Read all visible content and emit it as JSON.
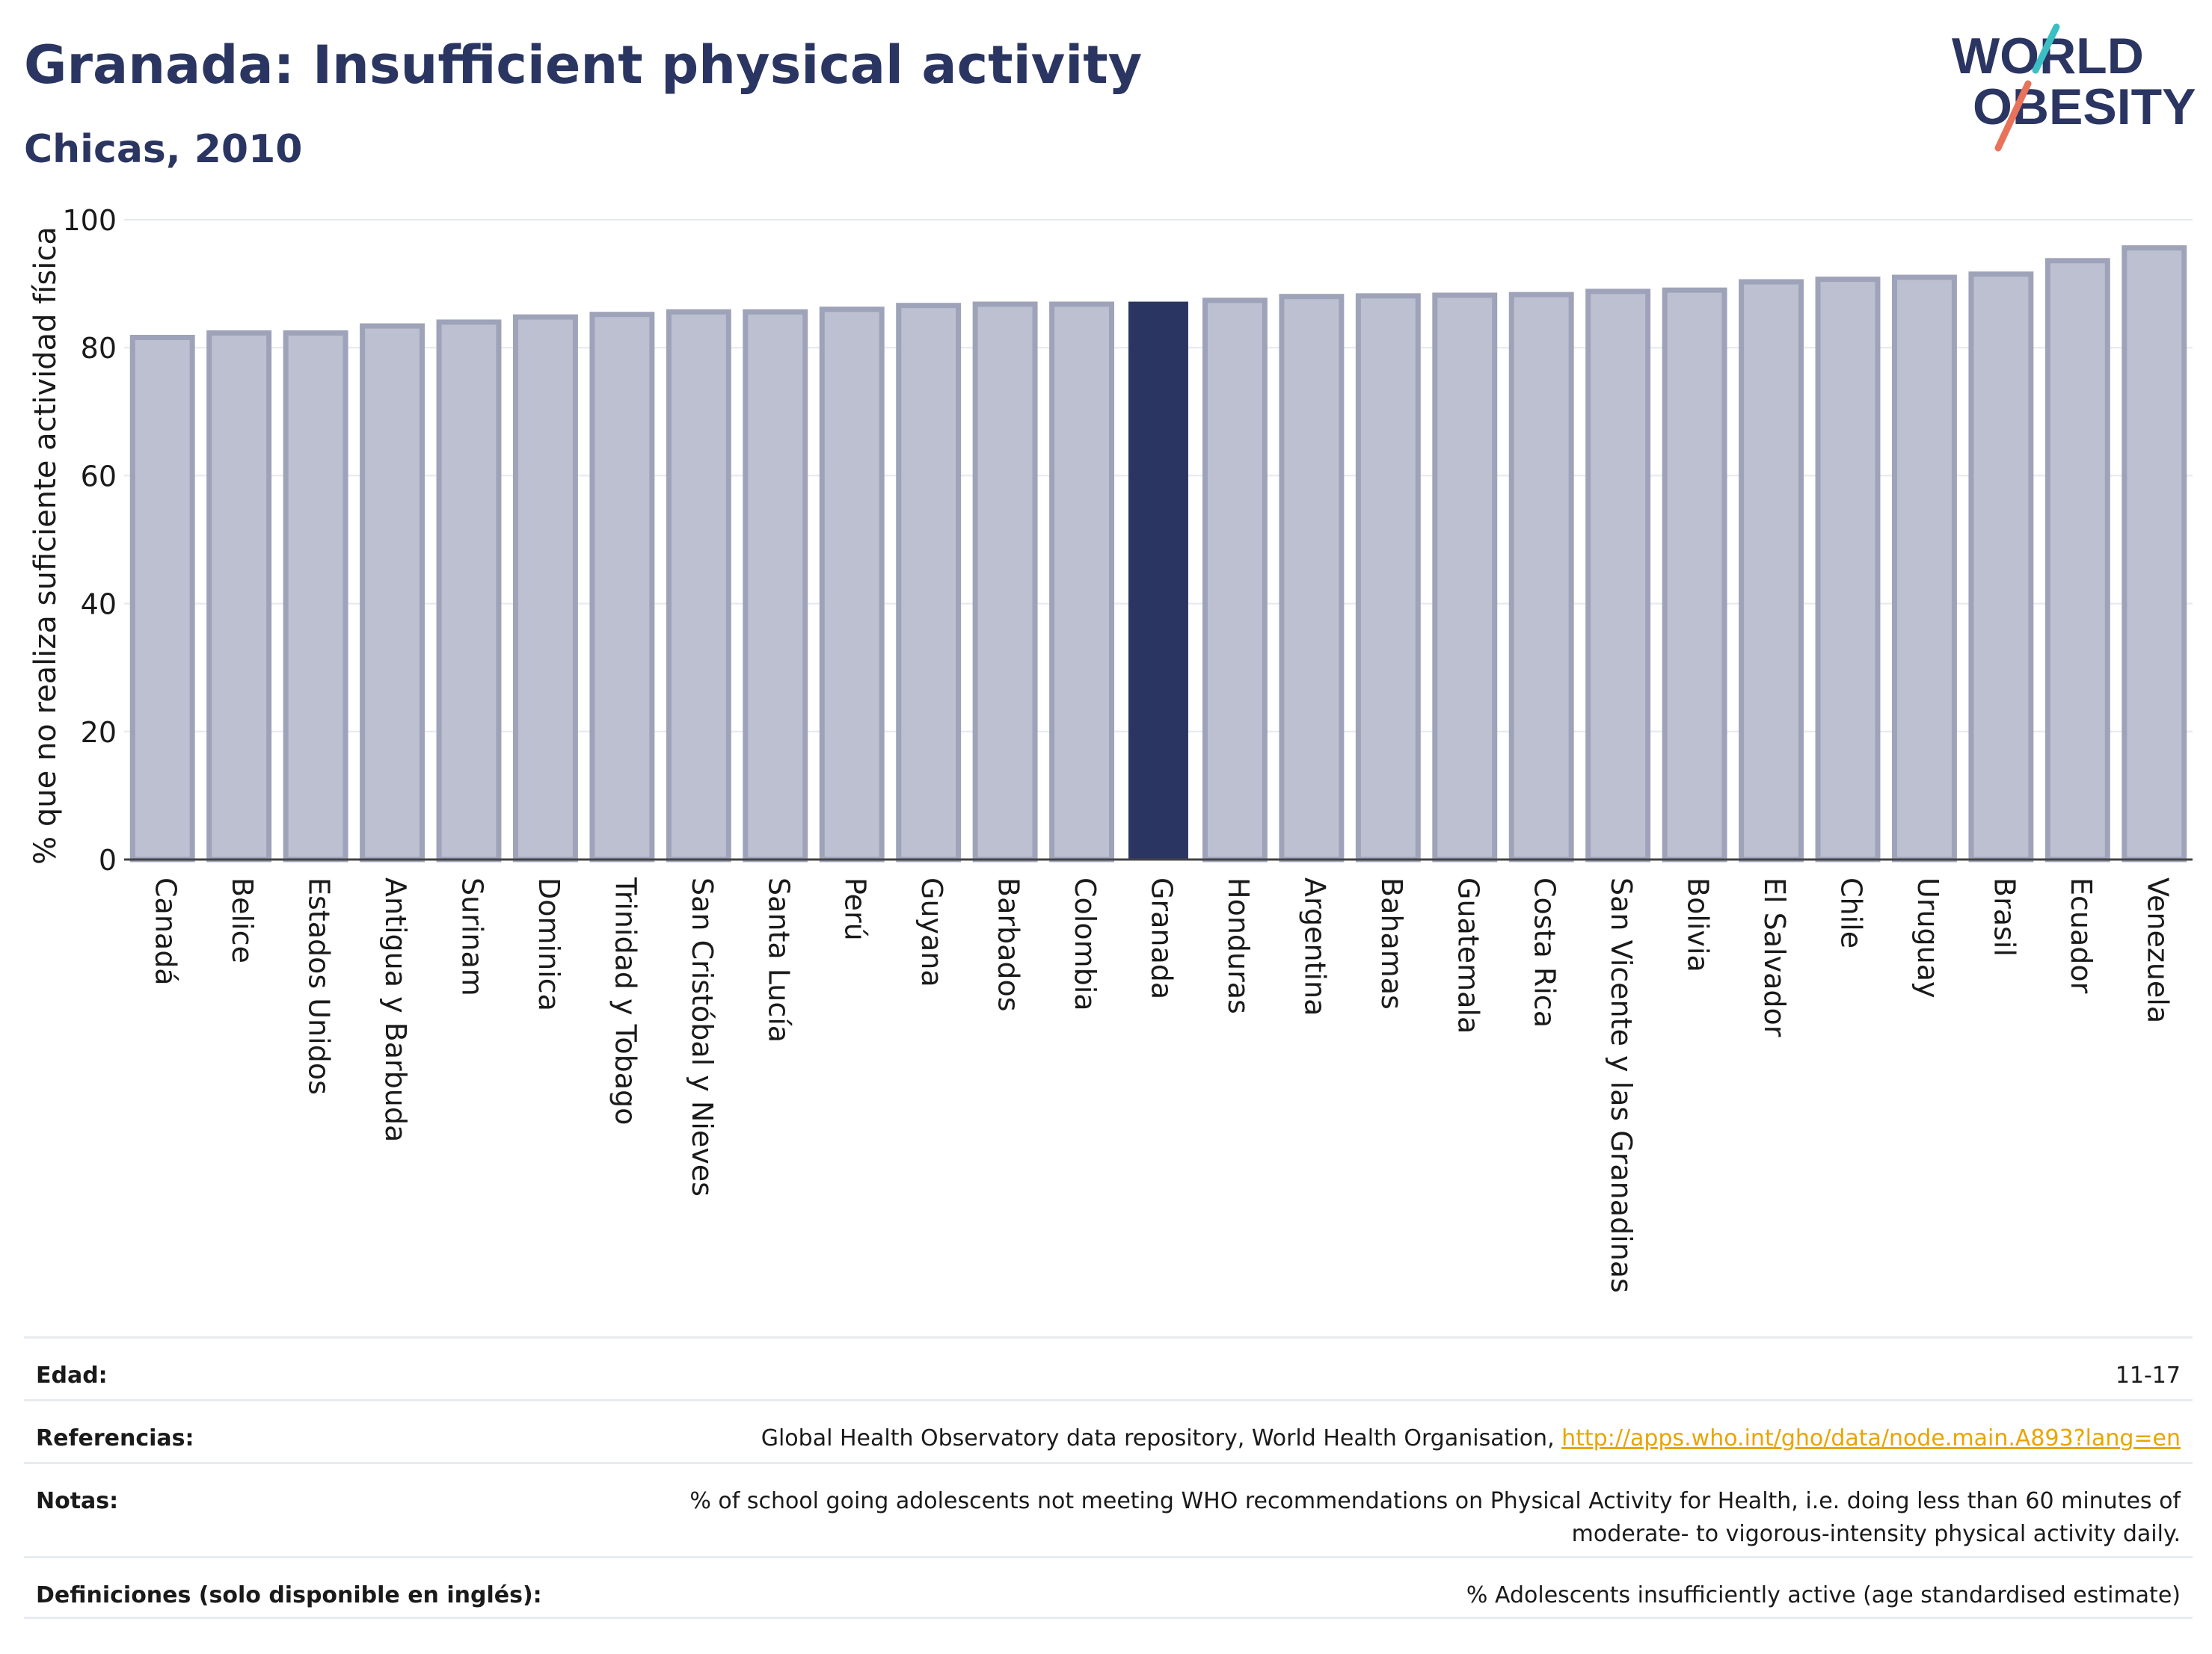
{
  "header": {
    "title": "Granada: Insufficient physical activity",
    "subtitle": "Chicas, 2010"
  },
  "logo": {
    "line1": "WORLD",
    "line2": "OBESITY",
    "accent_teal": "#3cbfc4",
    "accent_red": "#e8735a",
    "text_color": "#2b3562"
  },
  "colors": {
    "bar": "#bcc0d0",
    "bar_border": "#9ea3b9",
    "highlight": "#2b3562"
  },
  "chart_data": {
    "type": "bar",
    "title": "",
    "xlabel": "",
    "ylabel": "% que no realiza suficiente actividad física",
    "ylim": [
      0,
      100
    ],
    "yticks": [
      0,
      20,
      40,
      60,
      80,
      100
    ],
    "grid": true,
    "highlight": "Granada",
    "categories": [
      "Canadá",
      "Belice",
      "Estados Unidos",
      "Antigua y Barbuda",
      "Surinam",
      "Dominica",
      "Trinidad y Tobago",
      "San Cristóbal y Nieves",
      "Santa Lucía",
      "Perú",
      "Guyana",
      "Barbados",
      "Colombia",
      "Granada",
      "Honduras",
      "Argentina",
      "Bahamas",
      "Guatemala",
      "Costa Rica",
      "San Vicente y las Granadinas",
      "Bolivia",
      "El Salvador",
      "Chile",
      "Uruguay",
      "Brasil",
      "Ecuador",
      "Venezuela"
    ],
    "values": [
      81.6,
      82.3,
      82.3,
      83.4,
      84.0,
      84.8,
      85.2,
      85.6,
      85.6,
      86.0,
      86.6,
      86.8,
      86.8,
      87.2,
      87.4,
      88.0,
      88.1,
      88.2,
      88.3,
      88.8,
      89.0,
      90.3,
      90.7,
      91.0,
      91.5,
      93.6,
      95.6
    ]
  },
  "meta": {
    "age_label": "Edad:",
    "age_value": "11-17",
    "refs_label": "Referencias:",
    "refs_text": "Global Health Observatory data repository, World Health Organisation, ",
    "refs_link": "http://apps.who.int/gho/data/node.main.A893?lang=en",
    "notes_label": "Notas:",
    "notes_value": "% of school going adolescents not meeting WHO recommendations on Physical Activity for Health, i.e. doing less than 60 minutes of moderate- to vigorous-intensity physical activity daily.",
    "defs_label": "Definiciones (solo disponible en inglés):",
    "defs_value": "% Adolescents insufficiently active (age standardised estimate)"
  }
}
